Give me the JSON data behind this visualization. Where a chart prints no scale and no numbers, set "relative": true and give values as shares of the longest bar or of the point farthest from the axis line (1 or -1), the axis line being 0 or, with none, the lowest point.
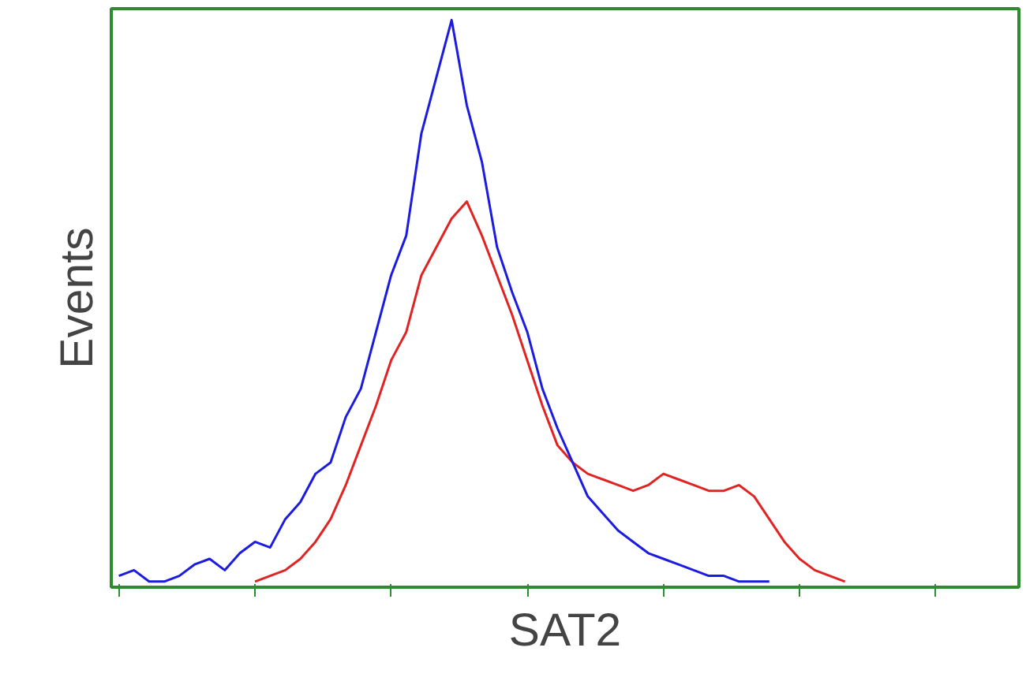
{
  "chart_data": {
    "type": "line",
    "relative": true,
    "xlabel": "SAT2",
    "ylabel": "Events",
    "grid": false,
    "marker": "none",
    "line_style": "solid",
    "categories": [
      null,
      null,
      null,
      null,
      null,
      null,
      null,
      null,
      null,
      null,
      null,
      null,
      null,
      null,
      null,
      null,
      null,
      null,
      null,
      null,
      null,
      null,
      null,
      null,
      null,
      null,
      null,
      null,
      null,
      null,
      null,
      null,
      null,
      null,
      null,
      null,
      null,
      null,
      null,
      null,
      null,
      null,
      null,
      null,
      null,
      null,
      null,
      null,
      null,
      null,
      null,
      null,
      null,
      null,
      null,
      null,
      null,
      null,
      null,
      null
    ],
    "series": [
      {
        "color": "#e02424",
        "values": [
          null,
          null,
          null,
          null,
          null,
          null,
          null,
          null,
          null,
          0.01,
          0.02,
          0.03,
          0.05,
          0.08,
          0.12,
          0.18,
          0.25,
          0.32,
          0.4,
          0.45,
          0.55,
          0.6,
          0.65,
          0.68,
          0.62,
          0.55,
          0.48,
          0.4,
          0.32,
          0.25,
          0.22,
          0.2,
          0.19,
          0.18,
          0.17,
          0.18,
          0.2,
          0.19,
          0.18,
          0.17,
          0.17,
          0.18,
          0.16,
          0.12,
          0.08,
          0.05,
          0.03,
          0.02,
          0.01,
          null,
          null,
          null,
          null,
          null,
          null,
          null,
          null,
          null,
          null,
          null
        ]
      },
      {
        "color": "#1c1ce0",
        "values": [
          0.02,
          0.03,
          0.01,
          0.01,
          0.02,
          0.04,
          0.05,
          0.03,
          0.06,
          0.08,
          0.07,
          0.12,
          0.15,
          0.2,
          0.22,
          0.3,
          0.35,
          0.45,
          0.55,
          0.62,
          0.8,
          0.9,
          1,
          0.85,
          0.75,
          0.6,
          0.52,
          0.45,
          0.35,
          0.28,
          0.22,
          0.16,
          0.13,
          0.1,
          0.08,
          0.06,
          0.05,
          0.04,
          0.03,
          0.02,
          0.02,
          0.01,
          0.01,
          0.01,
          null,
          null,
          null,
          null,
          null,
          null,
          null,
          null,
          null,
          null,
          null,
          null,
          null,
          null,
          null,
          null
        ]
      }
    ]
  }
}
